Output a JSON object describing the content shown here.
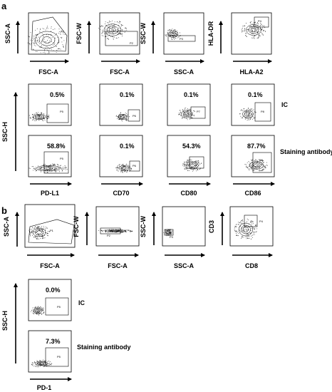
{
  "panel_a": {
    "label": "a",
    "gating": {
      "y_labels": [
        "SSC-A",
        "FSC-W",
        "SSC-W",
        "HLA-DR"
      ],
      "x_labels": [
        "FSC-A",
        "FSC-A",
        "SSC-A",
        "HLA-A2"
      ],
      "gates": [
        "P1",
        "P2",
        "P3",
        "P4"
      ]
    },
    "ssc_h_label": "SSC-H",
    "rows": [
      {
        "label": "IC",
        "percents": [
          "0.5%",
          "0.1%",
          "0.1%",
          "0.1%"
        ],
        "gates": [
          "P5",
          "P6",
          "P7",
          "P8"
        ]
      },
      {
        "label": "Staining antibody",
        "percents": [
          "58.8%",
          "0.1%",
          "54.3%",
          "87.7%"
        ],
        "gates": [
          "P5",
          "P6",
          "P7",
          "P8"
        ]
      }
    ],
    "markers": [
      "PD-L1",
      "CD70",
      "CD80",
      "CD86"
    ]
  },
  "panel_b": {
    "label": "b",
    "gating": {
      "y_labels": [
        "SSC-A",
        "FSC-W",
        "SSC-W",
        "CD3"
      ],
      "x_labels": [
        "FSC-A",
        "FSC-A",
        "SSC-A",
        "CD8"
      ],
      "gates": [
        "P1",
        "P2",
        "P3",
        "P4"
      ]
    },
    "ssc_h_label": "SSC-H",
    "rows": [
      {
        "label": "IC",
        "percent": "0.0%",
        "gate": "P5"
      },
      {
        "label": "Staining antibody",
        "percent": "7.3%",
        "gate": "P5"
      }
    ],
    "marker": "PD-1"
  }
}
